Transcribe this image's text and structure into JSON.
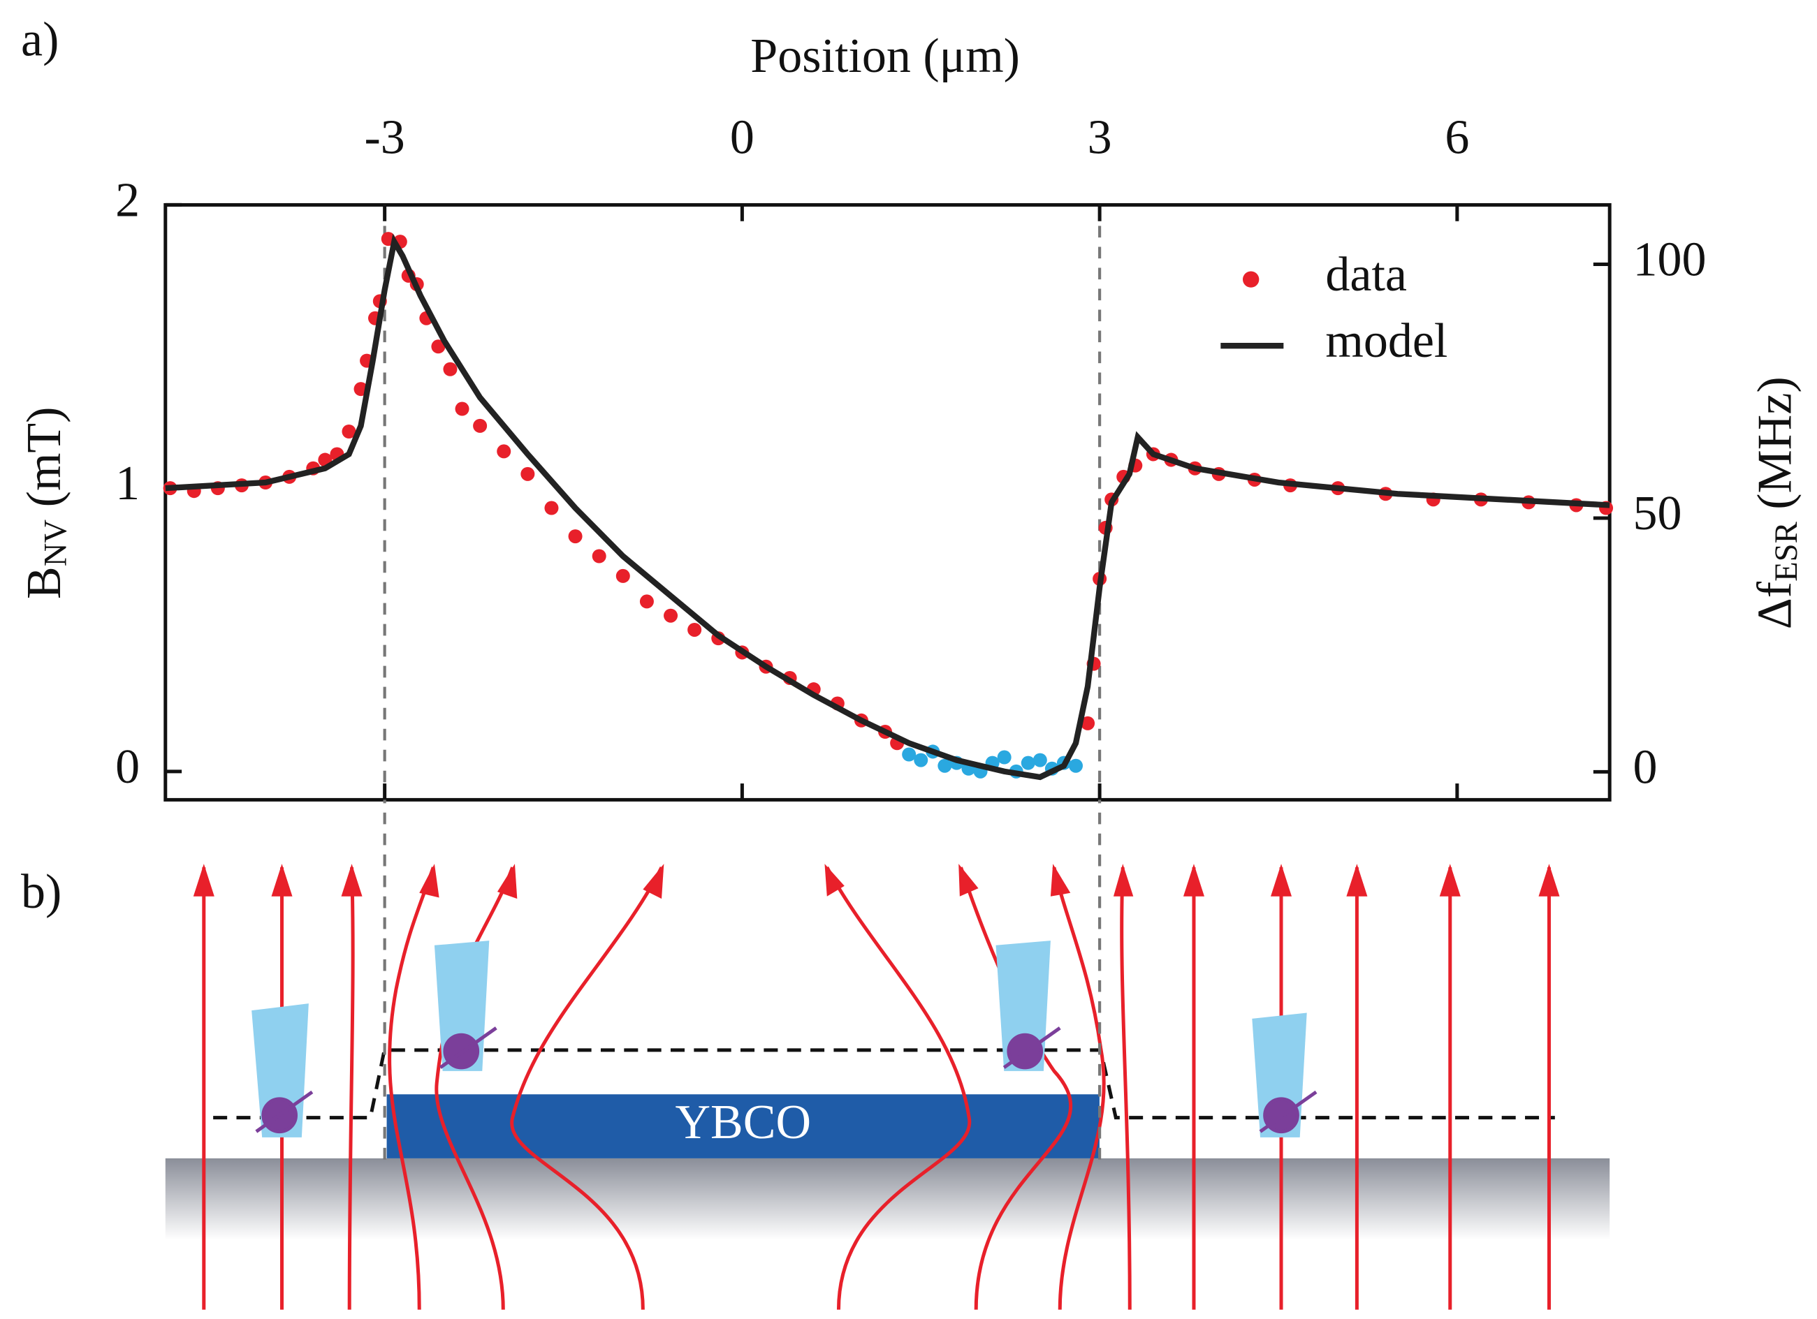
{
  "chart_data": {
    "type": "scatter",
    "panel_labels": [
      "a)",
      "b)"
    ],
    "xlabel": "Position (μm)",
    "ylabel": [
      "B",
      "NV",
      " (mT)"
    ],
    "y2label": [
      "Δf",
      "ESR",
      " (MHz)"
    ],
    "xlim": [
      -4.84,
      7.28
    ],
    "xticks": [
      -3,
      0,
      3,
      6
    ],
    "ylim": [
      -0.1,
      2
    ],
    "yticks": [
      0,
      1,
      2
    ],
    "y2lim": [
      -5.5,
      111.7
    ],
    "y2ticks": [
      0,
      50,
      100
    ],
    "vlines": [
      -3,
      3
    ],
    "legend": "upper right",
    "series": [
      {
        "name": "data",
        "color": "#e8202a",
        "style": "markers",
        "x": [
          -4.8,
          -4.6,
          -4.4,
          -4.2,
          -4.0,
          -3.8,
          -3.6,
          -3.5,
          -3.4,
          -3.3,
          -3.2,
          -3.15,
          -3.08,
          -3.04,
          -2.97,
          -2.87,
          -2.8,
          -2.73,
          -2.65,
          -2.55,
          -2.45,
          -2.35,
          -2.2,
          -2.0,
          -1.8,
          -1.6,
          -1.4,
          -1.2,
          -1.0,
          -0.8,
          -0.6,
          -0.4,
          -0.2,
          0.0,
          0.2,
          0.4,
          0.6,
          0.8,
          1.0,
          1.2,
          1.3,
          2.9,
          2.95,
          3.0,
          3.05,
          3.1,
          3.2,
          3.3,
          3.45,
          3.6,
          3.8,
          4.0,
          4.3,
          4.6,
          5.0,
          5.4,
          5.8,
          6.2,
          6.6,
          7.0,
          7.25
        ],
        "values": [
          1.0,
          0.99,
          1.0,
          1.01,
          1.02,
          1.04,
          1.07,
          1.1,
          1.12,
          1.2,
          1.35,
          1.45,
          1.6,
          1.66,
          1.88,
          1.87,
          1.75,
          1.72,
          1.6,
          1.5,
          1.42,
          1.28,
          1.22,
          1.13,
          1.05,
          0.93,
          0.83,
          0.76,
          0.69,
          0.6,
          0.55,
          0.5,
          0.47,
          0.42,
          0.37,
          0.33,
          0.29,
          0.24,
          0.18,
          0.14,
          0.1,
          0.17,
          0.38,
          0.68,
          0.86,
          0.96,
          1.04,
          1.08,
          1.12,
          1.1,
          1.07,
          1.05,
          1.03,
          1.01,
          1.0,
          0.98,
          0.96,
          0.96,
          0.95,
          0.94,
          0.93
        ]
      },
      {
        "color": "#2aa8e0",
        "style": "markers",
        "x": [
          1.4,
          1.5,
          1.6,
          1.7,
          1.8,
          1.9,
          2.0,
          2.1,
          2.2,
          2.3,
          2.4,
          2.5,
          2.6,
          2.7,
          2.8
        ],
        "values": [
          0.06,
          0.04,
          0.07,
          0.02,
          0.03,
          0.01,
          0.0,
          0.03,
          0.05,
          0.0,
          0.03,
          0.04,
          0.01,
          0.03,
          0.02
        ]
      },
      {
        "name": "model",
        "color": "#222222",
        "style": "line",
        "x": [
          -4.84,
          -4.0,
          -3.5,
          -3.3,
          -3.2,
          -3.1,
          -3.0,
          -2.92,
          -2.85,
          -2.7,
          -2.5,
          -2.2,
          -1.8,
          -1.4,
          -1.0,
          -0.6,
          -0.2,
          0.2,
          0.6,
          1.0,
          1.4,
          1.8,
          2.2,
          2.5,
          2.7,
          2.8,
          2.9,
          3.0,
          3.1,
          3.25,
          3.32,
          3.45,
          3.8,
          4.5,
          5.5,
          7.28
        ],
        "values": [
          1.0,
          1.02,
          1.07,
          1.12,
          1.22,
          1.45,
          1.7,
          1.87,
          1.82,
          1.68,
          1.52,
          1.32,
          1.12,
          0.93,
          0.76,
          0.62,
          0.48,
          0.37,
          0.27,
          0.18,
          0.1,
          0.04,
          0.0,
          -0.02,
          0.02,
          0.1,
          0.3,
          0.65,
          0.95,
          1.05,
          1.18,
          1.12,
          1.07,
          1.02,
          0.98,
          0.94
        ]
      }
    ],
    "diagram_label": "YBCO"
  }
}
